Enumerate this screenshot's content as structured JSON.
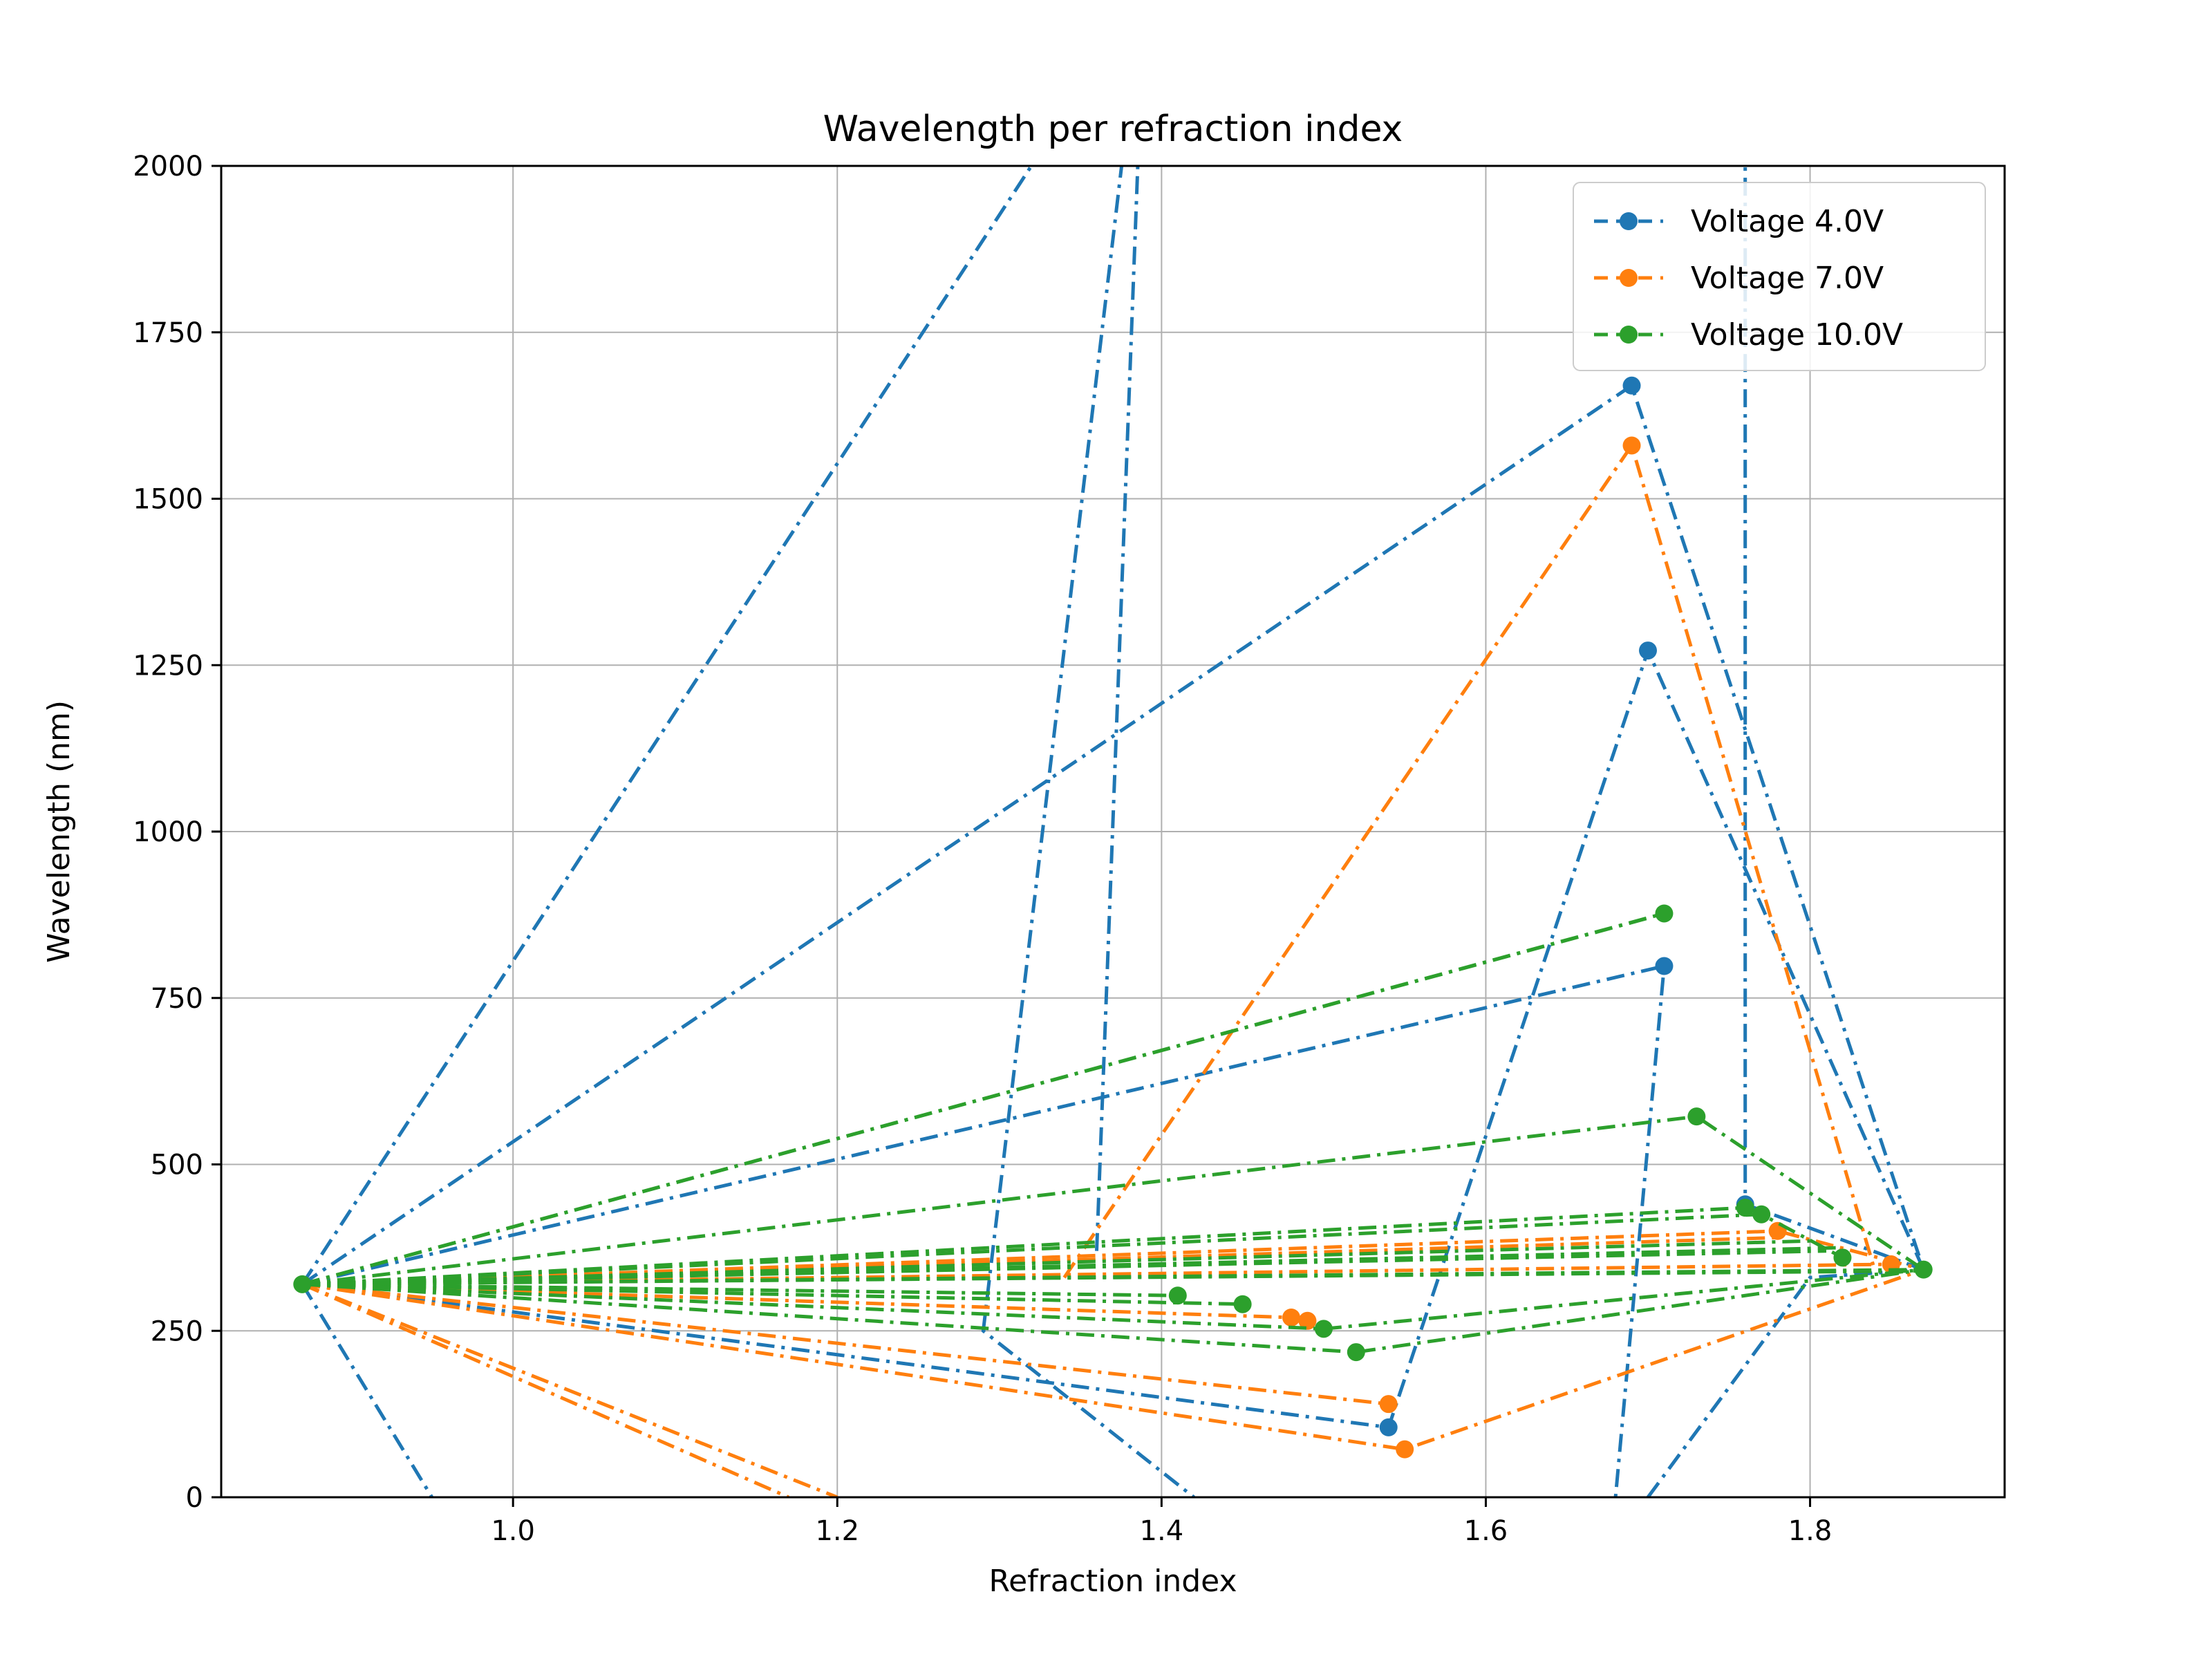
{
  "chart_data": {
    "type": "line",
    "title": "Wavelength per refraction index",
    "xlabel": "Refraction index",
    "ylabel": "Wavelength (nm)",
    "xlim": [
      0.82,
      1.92
    ],
    "ylim": [
      0,
      2000
    ],
    "xticks": [
      1.0,
      1.2,
      1.4,
      1.6,
      1.8
    ],
    "yticks": [
      0,
      250,
      500,
      750,
      1000,
      1250,
      1500,
      1750,
      2000
    ],
    "grid": true,
    "legend_position": "top-right",
    "series": [
      {
        "name": "Voltage 4.0V",
        "color": "#1f77b4",
        "segments": [
          {
            "style": "dashdot",
            "points": [
              [
                0.87,
                320
              ],
              [
                1.69,
                1670
              ],
              [
                1.87,
                342
              ]
            ]
          },
          {
            "style": "dashdot",
            "points": [
              [
                0.87,
                320
              ],
              [
                1.71,
                798
              ],
              [
                1.68,
                0
              ]
            ]
          },
          {
            "style": "dashdot",
            "points": [
              [
                0.87,
                320
              ],
              [
                1.54,
                105
              ],
              [
                1.7,
                1272
              ],
              [
                1.87,
                342
              ]
            ]
          },
          {
            "style": "dashdot",
            "points": [
              [
                0.87,
                320
              ],
              [
                1.4,
                2300
              ]
            ]
          },
          {
            "style": "dashdot",
            "points": [
              [
                0.87,
                320
              ],
              [
                0.95,
                0
              ]
            ]
          },
          {
            "style": "dashdot",
            "points": [
              [
                1.36,
                370
              ],
              [
                1.39,
                2300
              ],
              [
                1.29,
                250
              ],
              [
                1.42,
                0
              ]
            ]
          },
          {
            "style": "dashdot",
            "points": [
              [
                1.76,
                2300
              ],
              [
                1.76,
                440
              ],
              [
                1.87,
                342
              ]
            ]
          },
          {
            "style": "dashdot",
            "points": [
              [
                1.7,
                0
              ],
              [
                1.8,
                330
              ],
              [
                1.87,
                342
              ]
            ]
          }
        ],
        "markers": [
          [
            1.69,
            1670
          ],
          [
            1.7,
            1272
          ],
          [
            1.71,
            798
          ],
          [
            1.76,
            440
          ],
          [
            1.54,
            105
          ]
        ]
      },
      {
        "name": "Voltage 7.0V",
        "color": "#ff7f0e",
        "segments": [
          {
            "style": "dashdot",
            "points": [
              [
                0.87,
                320
              ],
              [
                1.54,
                140
              ]
            ]
          },
          {
            "style": "dashdot",
            "points": [
              [
                0.87,
                320
              ],
              [
                1.55,
                72
              ],
              [
                1.87,
                342
              ]
            ]
          },
          {
            "style": "dashdot",
            "points": [
              [
                0.87,
                320
              ],
              [
                1.2,
                0
              ]
            ]
          },
          {
            "style": "dashdot",
            "points": [
              [
                0.87,
                320
              ],
              [
                1.17,
                0
              ]
            ]
          },
          {
            "style": "dashdot",
            "points": [
              [
                1.34,
                330
              ],
              [
                1.69,
                1580
              ],
              [
                1.84,
                340
              ]
            ]
          },
          {
            "style": "dashdot",
            "points": [
              [
                0.87,
                320
              ],
              [
                1.48,
                270
              ]
            ]
          },
          {
            "style": "dashdot",
            "points": [
              [
                0.87,
                320
              ],
              [
                1.78,
                400
              ],
              [
                1.87,
                342
              ]
            ]
          },
          {
            "style": "dashdot",
            "points": [
              [
                0.87,
                320
              ],
              [
                1.78,
                390
              ]
            ]
          },
          {
            "style": "dashdot",
            "points": [
              [
                0.87,
                320
              ],
              [
                1.85,
                350
              ]
            ]
          }
        ],
        "markers": [
          [
            1.69,
            1580
          ],
          [
            1.54,
            140
          ],
          [
            1.55,
            72
          ],
          [
            1.48,
            270
          ],
          [
            1.49,
            265
          ],
          [
            1.78,
            400
          ],
          [
            1.85,
            350
          ]
        ]
      },
      {
        "name": "Voltage 10.0V",
        "color": "#2ca02c",
        "segments": [
          {
            "style": "dashdot",
            "points": [
              [
                0.87,
                320
              ],
              [
                1.71,
                877
              ]
            ]
          },
          {
            "style": "dashdot",
            "points": [
              [
                0.87,
                320
              ],
              [
                1.7,
                870
              ]
            ]
          },
          {
            "style": "dashdot",
            "points": [
              [
                0.87,
                320
              ],
              [
                1.73,
                572
              ],
              [
                1.87,
                342
              ]
            ]
          },
          {
            "style": "dashdot",
            "points": [
              [
                0.87,
                320
              ],
              [
                1.77,
                425
              ],
              [
                1.82,
                360
              ]
            ]
          },
          {
            "style": "dashdot",
            "points": [
              [
                0.87,
                320
              ],
              [
                1.76,
                435
              ]
            ]
          },
          {
            "style": "dashdot",
            "points": [
              [
                0.87,
                320
              ],
              [
                1.52,
                218
              ],
              [
                1.87,
                342
              ]
            ]
          },
          {
            "style": "dashdot",
            "points": [
              [
                0.87,
                320
              ],
              [
                1.5,
                253
              ],
              [
                1.87,
                342
              ]
            ]
          },
          {
            "style": "dashdot",
            "points": [
              [
                0.87,
                320
              ],
              [
                1.45,
                290
              ]
            ]
          },
          {
            "style": "dashdot",
            "points": [
              [
                0.87,
                320
              ],
              [
                1.41,
                303
              ]
            ]
          },
          {
            "style": "dashdot",
            "points": [
              [
                0.87,
                320
              ],
              [
                1.82,
                375
              ]
            ]
          },
          {
            "style": "dashdot",
            "points": [
              [
                0.87,
                320
              ],
              [
                1.87,
                342
              ]
            ]
          },
          {
            "style": "dashdot",
            "points": [
              [
                0.87,
                320
              ],
              [
                1.8,
                385
              ]
            ]
          },
          {
            "style": "dashdot",
            "points": [
              [
                0.87,
                320
              ],
              [
                1.81,
                370
              ]
            ]
          },
          {
            "style": "dashdot",
            "points": [
              [
                0.87,
                320
              ],
              [
                1.87,
                340
              ]
            ]
          }
        ],
        "markers": [
          [
            0.87,
            320
          ],
          [
            1.71,
            877
          ],
          [
            1.73,
            572
          ],
          [
            1.76,
            435
          ],
          [
            1.77,
            425
          ],
          [
            1.52,
            218
          ],
          [
            1.5,
            253
          ],
          [
            1.45,
            290
          ],
          [
            1.41,
            303
          ],
          [
            1.82,
            360
          ],
          [
            1.87,
            342
          ]
        ]
      }
    ]
  }
}
